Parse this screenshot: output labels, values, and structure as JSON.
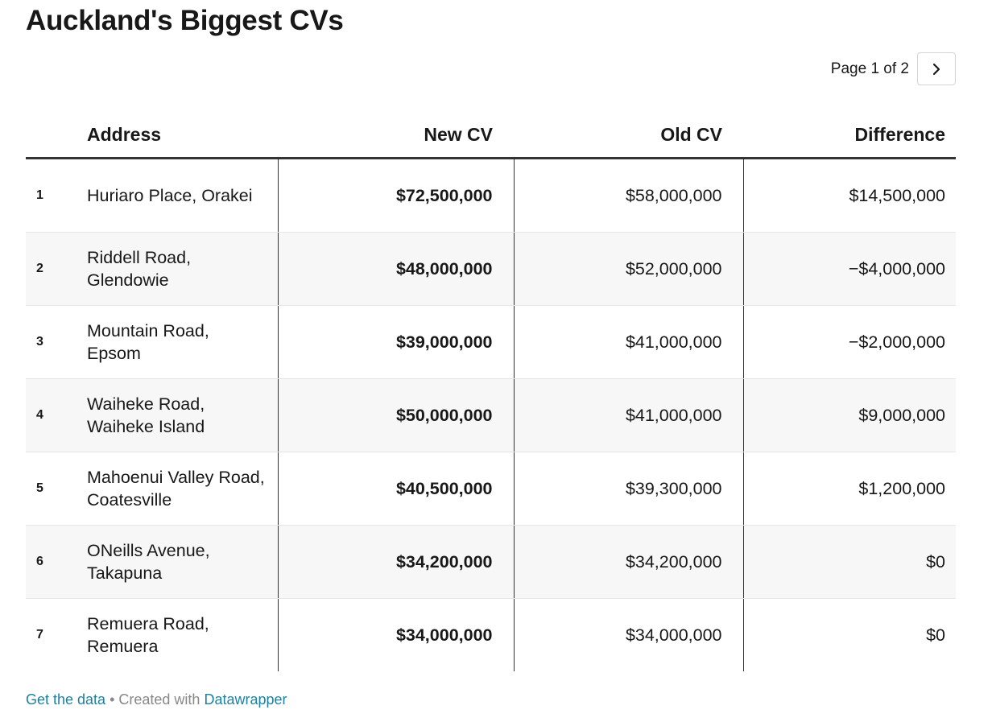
{
  "title": "Auckland's Biggest CVs",
  "pager": {
    "label": "Page 1 of 2",
    "next_icon": "chevron-right-icon"
  },
  "chart_data": {
    "type": "table",
    "columns": [
      "",
      "Address",
      "New CV",
      "Old CV",
      "Difference"
    ],
    "rows": [
      {
        "rank": "1",
        "address": "Huriaro Place, Orakei",
        "new_cv": "$72,500,000",
        "old_cv": "$58,000,000",
        "difference": "$14,500,000"
      },
      {
        "rank": "2",
        "address": "Riddell Road, Glendowie",
        "new_cv": "$48,000,000",
        "old_cv": "$52,000,000",
        "difference": "−$4,000,000"
      },
      {
        "rank": "3",
        "address": "Mountain Road, Epsom",
        "new_cv": "$39,000,000",
        "old_cv": "$41,000,000",
        "difference": "−$2,000,000"
      },
      {
        "rank": "4",
        "address": "Waiheke Road, Waiheke Island",
        "new_cv": "$50,000,000",
        "old_cv": "$41,000,000",
        "difference": "$9,000,000"
      },
      {
        "rank": "5",
        "address": "Mahoenui Valley Road, Coatesville",
        "new_cv": "$40,500,000",
        "old_cv": "$39,300,000",
        "difference": "$1,200,000"
      },
      {
        "rank": "6",
        "address": "ONeills Avenue, Takapuna",
        "new_cv": "$34,200,000",
        "old_cv": "$34,200,000",
        "difference": "$0"
      },
      {
        "rank": "7",
        "address": "Remuera Road, Remuera",
        "new_cv": "$34,000,000",
        "old_cv": "$34,000,000",
        "difference": "$0"
      }
    ]
  },
  "footer": {
    "get_data": "Get the data",
    "separator": " • ",
    "created_with": "Created with ",
    "datawrapper": "Datawrapper"
  },
  "colors": {
    "link": "#1d81a2",
    "stripe": "#f7f7f7",
    "text": "#181818"
  }
}
